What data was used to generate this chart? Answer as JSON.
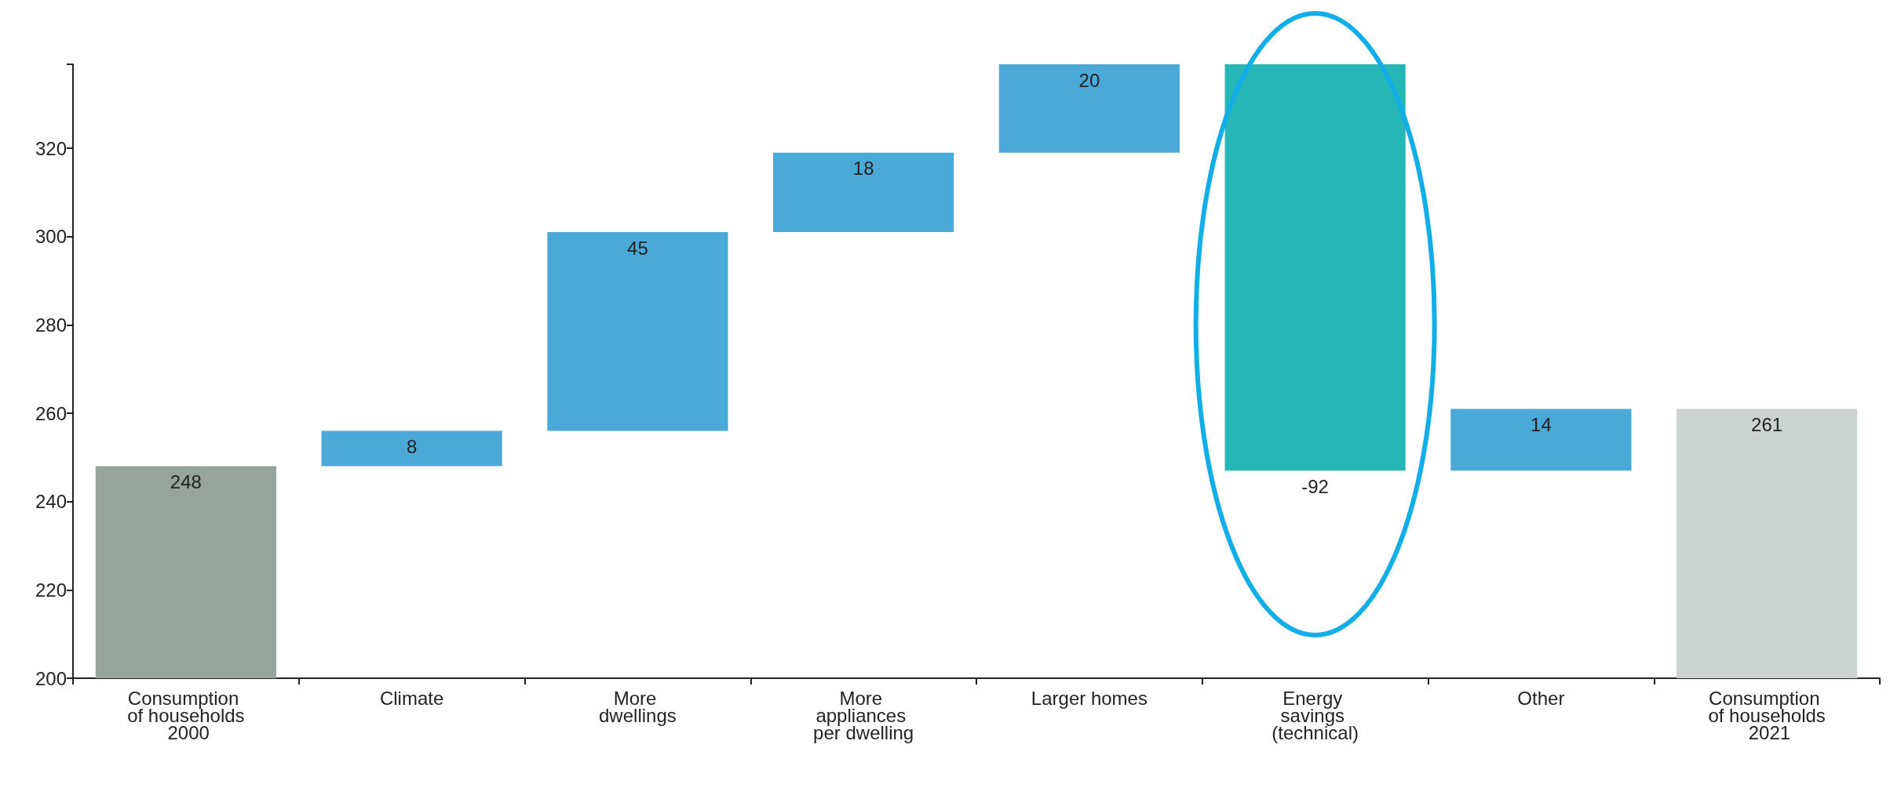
{
  "chart_data": {
    "type": "bar",
    "categories": [
      "Consumption of households 2000",
      "Climate",
      "More dwellings",
      "More appliances per dwelling",
      "Larger homes",
      "Energy savings (technical)",
      "Other",
      "Consumption of households 2021"
    ],
    "base": [
      200,
      248,
      256,
      301,
      319,
      339,
      247,
      200
    ],
    "values": [
      48,
      8,
      45,
      18,
      20,
      -92,
      14,
      61
    ],
    "value_labels": [
      "248",
      "8",
      "45",
      "18",
      "20",
      "-92",
      "14",
      "261"
    ],
    "colors": [
      "#95a59e",
      "#4ba9d8",
      "#4ba9d8",
      "#4ba9d8",
      "#4ba9d8",
      "#26b6b6",
      "#4ba9d8",
      "#cdd3d1"
    ],
    "ylim": [
      200,
      339
    ],
    "yticks": [
      200,
      220,
      240,
      260,
      280,
      300,
      320
    ]
  }
}
